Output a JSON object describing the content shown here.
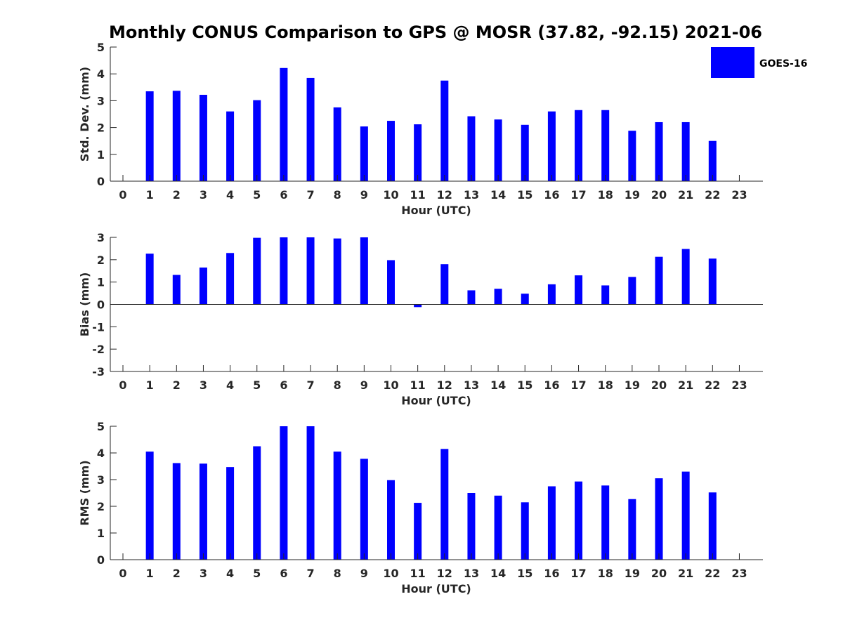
{
  "figure": {
    "title": "Monthly CONUS Comparison to GPS @ MOSR (37.82, -92.15) 2021-06"
  },
  "legend": {
    "label": "GOES-16",
    "color": "#0000ff"
  },
  "chart_data": [
    {
      "type": "bar",
      "ylabel": "Std. Dev. (mm)",
      "xlabel": "Hour (UTC)",
      "ylim": [
        0,
        5
      ],
      "yticks": [
        0,
        1,
        2,
        3,
        4,
        5
      ],
      "categories": [
        "0",
        "1",
        "2",
        "3",
        "4",
        "5",
        "6",
        "7",
        "8",
        "9",
        "10",
        "11",
        "12",
        "13",
        "14",
        "15",
        "16",
        "17",
        "18",
        "19",
        "20",
        "21",
        "22",
        "23"
      ],
      "series": [
        {
          "name": "GOES-16",
          "color": "#0000ff",
          "values": [
            null,
            3.35,
            3.37,
            3.22,
            2.6,
            3.02,
            4.22,
            3.85,
            2.75,
            2.04,
            2.25,
            2.12,
            3.75,
            2.42,
            2.3,
            2.1,
            2.6,
            2.65,
            2.65,
            1.88,
            2.2,
            2.2,
            1.5,
            null
          ]
        }
      ],
      "grid": false,
      "legend": "top-right"
    },
    {
      "type": "bar",
      "ylabel": "Bias (mm)",
      "xlabel": "Hour (UTC)",
      "ylim": [
        -3,
        3
      ],
      "yticks": [
        -3,
        -2,
        -1,
        0,
        1,
        2,
        3
      ],
      "categories": [
        "0",
        "1",
        "2",
        "3",
        "4",
        "5",
        "6",
        "7",
        "8",
        "9",
        "10",
        "11",
        "12",
        "13",
        "14",
        "15",
        "16",
        "17",
        "18",
        "19",
        "20",
        "21",
        "22",
        "23"
      ],
      "series": [
        {
          "name": "GOES-16",
          "color": "#0000ff",
          "values": [
            null,
            2.27,
            1.32,
            1.65,
            2.3,
            2.98,
            3.0,
            3.0,
            2.95,
            3.0,
            1.98,
            -0.12,
            1.8,
            0.63,
            0.7,
            0.48,
            0.9,
            1.3,
            0.85,
            1.23,
            2.13,
            2.48,
            2.05,
            null
          ]
        }
      ],
      "grid": false
    },
    {
      "type": "bar",
      "ylabel": "RMS (mm)",
      "xlabel": "Hour (UTC)",
      "ylim": [
        0,
        5
      ],
      "yticks": [
        0,
        1,
        2,
        3,
        4,
        5
      ],
      "categories": [
        "0",
        "1",
        "2",
        "3",
        "4",
        "5",
        "6",
        "7",
        "8",
        "9",
        "10",
        "11",
        "12",
        "13",
        "14",
        "15",
        "16",
        "17",
        "18",
        "19",
        "20",
        "21",
        "22",
        "23"
      ],
      "series": [
        {
          "name": "GOES-16",
          "color": "#0000ff",
          "values": [
            null,
            4.05,
            3.62,
            3.6,
            3.47,
            4.25,
            5.0,
            5.0,
            4.05,
            3.78,
            2.98,
            2.13,
            4.15,
            2.5,
            2.4,
            2.15,
            2.75,
            2.93,
            2.78,
            2.27,
            3.05,
            3.3,
            2.52,
            null
          ]
        }
      ],
      "grid": false
    }
  ]
}
